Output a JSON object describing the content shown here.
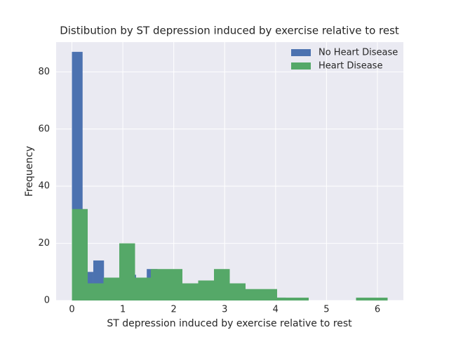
{
  "chart_data": {
    "type": "histogram",
    "title": "Distibution by ST depression induced by exercise relative to rest",
    "x_label": "ST depression induced by exercise relative to rest",
    "y_label": "Frequency",
    "series": [
      {
        "name": "No Heart Disease",
        "color": "#4c72b0",
        "bins": [
          0,
          0.21,
          0.42,
          0.63,
          0.84,
          1.05,
          1.26,
          1.47,
          1.68,
          1.89,
          2.1,
          2.31,
          2.52,
          2.73,
          2.94,
          3.15,
          3.36,
          3.57,
          3.78,
          3.99,
          4.2
        ],
        "values": [
          87,
          10,
          14,
          6,
          4,
          9,
          7,
          11,
          8,
          5,
          3,
          2,
          1,
          1,
          1,
          0,
          1,
          0,
          0,
          1
        ]
      },
      {
        "name": "Heart Disease",
        "color": "#55a868",
        "bins": [
          0,
          0.31,
          0.62,
          0.93,
          1.24,
          1.55,
          1.86,
          2.17,
          2.48,
          2.79,
          3.1,
          3.41,
          3.72,
          4.03,
          4.34,
          4.65,
          4.96,
          5.27,
          5.58,
          5.89,
          6.2
        ],
        "values": [
          32,
          6,
          8,
          20,
          8,
          11,
          11,
          6,
          7,
          11,
          6,
          4,
          4,
          1,
          1,
          0,
          0,
          0,
          1,
          1
        ]
      }
    ],
    "xlim": [
      -0.31,
      6.51
    ],
    "ylim": [
      0,
      90.4
    ],
    "xticks": [
      0,
      1,
      2,
      3,
      4,
      5,
      6
    ],
    "yticks": [
      0,
      20,
      40,
      60,
      80
    ],
    "grid": true,
    "legend": "upper right"
  }
}
